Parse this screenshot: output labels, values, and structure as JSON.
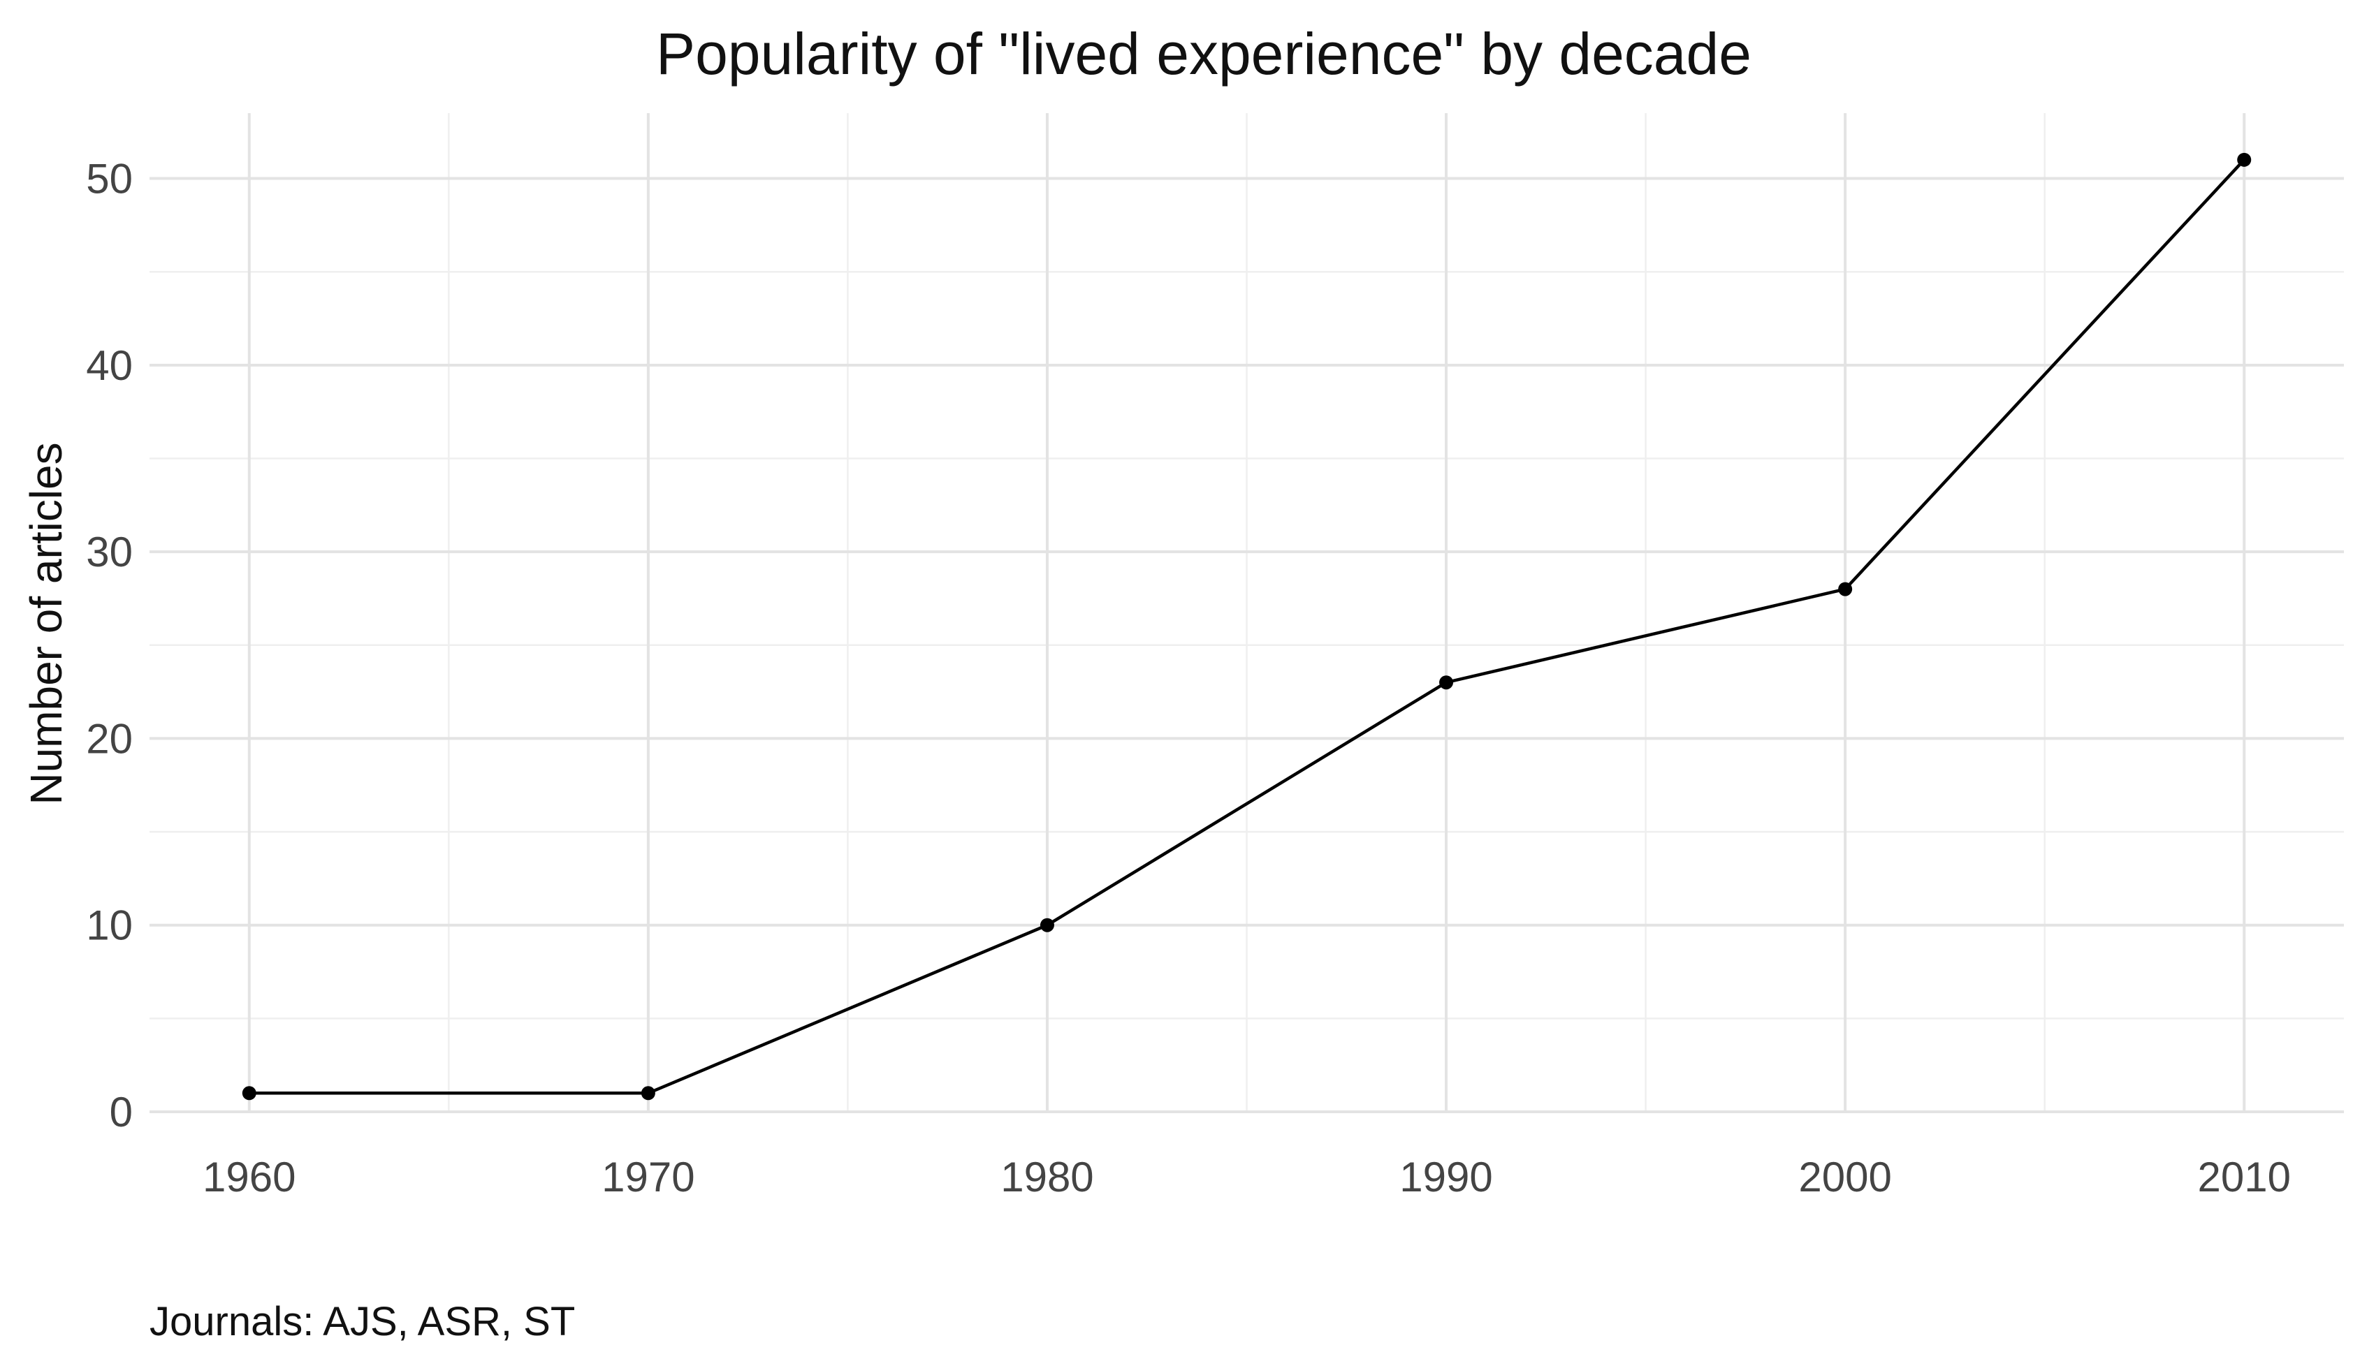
{
  "chart_data": {
    "type": "line",
    "title": "Popularity of \"lived experience\" by decade",
    "xlabel": "",
    "ylabel": "Number of articles",
    "caption": "Journals: AJS, ASR, ST",
    "x": [
      1960,
      1970,
      1980,
      1990,
      2000,
      2010
    ],
    "y": [
      1,
      1,
      10,
      23,
      28,
      51
    ],
    "x_ticks": [
      "1960",
      "1970",
      "1980",
      "1990",
      "2000",
      "2010"
    ],
    "y_ticks": [
      "0",
      "10",
      "20",
      "30",
      "40",
      "50"
    ],
    "xlim": [
      1957.5,
      2012.5
    ],
    "ylim": [
      0,
      53.5
    ],
    "grid": true,
    "legend": "none",
    "colors": {
      "line": "#000000",
      "points": "#000000",
      "grid": "#e3e3e3"
    }
  }
}
